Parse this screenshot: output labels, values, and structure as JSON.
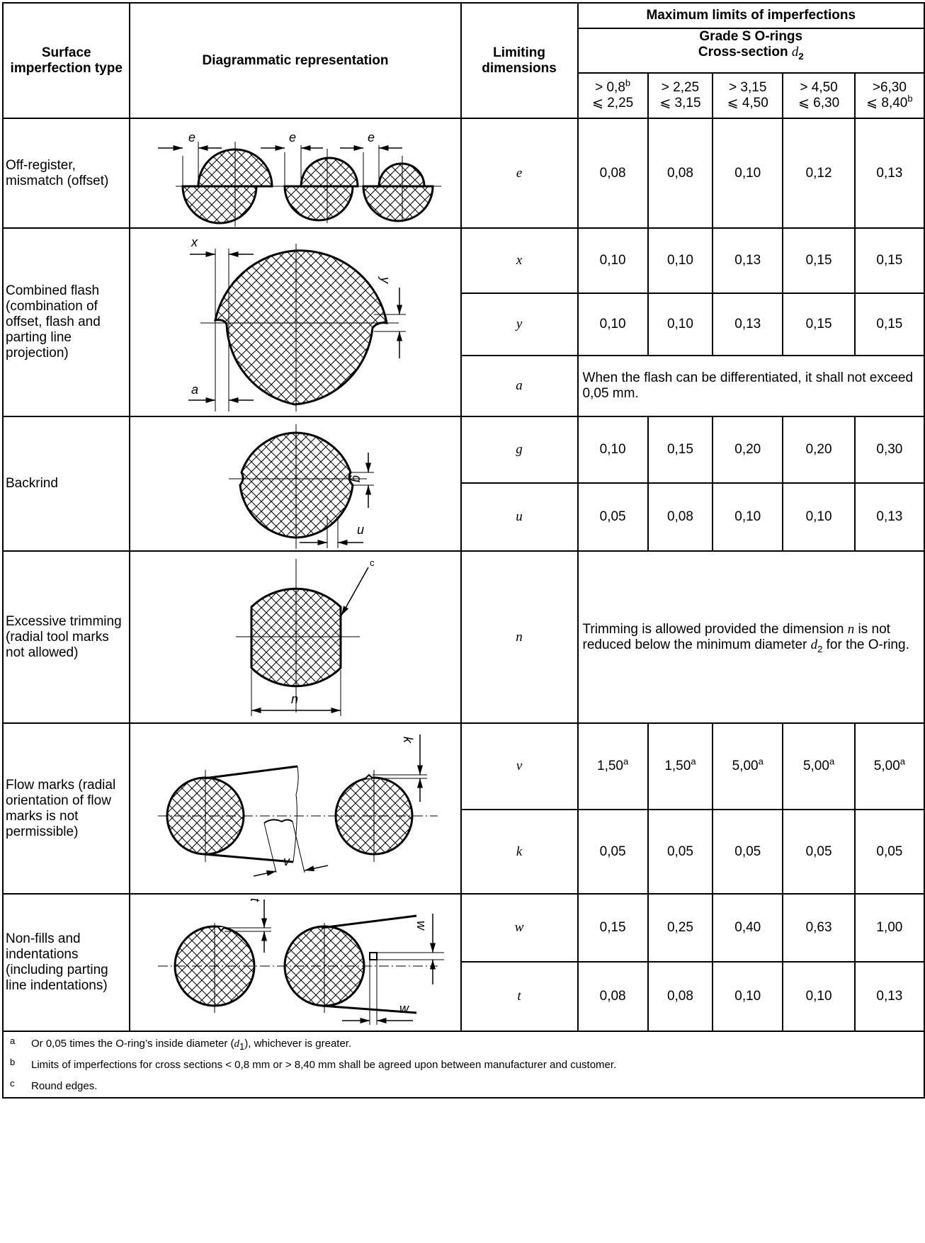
{
  "header": {
    "col_type": "Surface imperfection type",
    "col_diagram": "Diagrammatic representation",
    "col_dimension": "Limiting dimensions",
    "max_limits": "Maximum limits of imperfections",
    "grade": "Grade S O-rings",
    "cross_section_prefix": "Cross-section ",
    "cross_section_symbol": "d",
    "cross_section_sub": "2",
    "ranges": [
      {
        "l1": "> 0,8",
        "l1sup": "b",
        "l2": "⩽ 2,25",
        "l2sup": ""
      },
      {
        "l1": "> 2,25",
        "l1sup": "",
        "l2": "⩽ 3,15",
        "l2sup": ""
      },
      {
        "l1": "> 3,15",
        "l1sup": "",
        "l2": "⩽ 4,50",
        "l2sup": ""
      },
      {
        "l1": "> 4,50",
        "l1sup": "",
        "l2": "⩽ 6,30",
        "l2sup": ""
      },
      {
        "l1": ">6,30",
        "l1sup": "",
        "l2": "⩽ 8,40",
        "l2sup": "b"
      }
    ]
  },
  "rows": {
    "offset": {
      "type": "Off-register, mismatch (offset)",
      "dim": "e",
      "values": [
        "0,08",
        "0,08",
        "0,10",
        "0,12",
        "0,13"
      ],
      "labels": [
        "e",
        "e",
        "e"
      ]
    },
    "flash": {
      "type": "Combined flash (combination of offset, flash and parting line projection)",
      "x": {
        "dim": "x",
        "values": [
          "0,10",
          "0,10",
          "0,13",
          "0,15",
          "0,15"
        ]
      },
      "y": {
        "dim": "y",
        "values": [
          "0,10",
          "0,10",
          "0,13",
          "0,15",
          "0,15"
        ]
      },
      "a": {
        "dim": "a",
        "note": "When the flash can be differentiated, it shall not exceed 0,05 mm."
      },
      "labels": [
        "x",
        "y",
        "a"
      ]
    },
    "backrind": {
      "type": "Backrind",
      "g": {
        "dim": "g",
        "values": [
          "0,10",
          "0,15",
          "0,20",
          "0,20",
          "0,30"
        ]
      },
      "u": {
        "dim": "u",
        "values": [
          "0,05",
          "0,08",
          "0,10",
          "0,10",
          "0,13"
        ]
      },
      "labels": [
        "g",
        "u"
      ]
    },
    "trimming": {
      "type": "Excessive trimming (radial tool marks not allowed)",
      "dim": "n",
      "note_a": "Trimming is allowed provided the dimension ",
      "note_n": "n",
      "note_b": " is not reduced below the minimum diameter ",
      "note_d": "d",
      "note_sub": "2",
      "note_c": " for the O-ring.",
      "labels": [
        "c",
        "n"
      ]
    },
    "flow": {
      "type": "Flow marks (radial orientation of flow marks is not permissible)",
      "v": {
        "dim": "v",
        "values": [
          "1,50",
          "1,50",
          "5,00",
          "5,00",
          "5,00"
        ],
        "sup": "a"
      },
      "k": {
        "dim": "k",
        "values": [
          "0,05",
          "0,05",
          "0,05",
          "0,05",
          "0,05"
        ]
      },
      "labels": [
        "k",
        "v"
      ]
    },
    "nonfill": {
      "type": "Non-fills and indentations (including parting line indentations)",
      "w": {
        "dim": "w",
        "values": [
          "0,15",
          "0,25",
          "0,40",
          "0,63",
          "1,00"
        ]
      },
      "t": {
        "dim": "t",
        "values": [
          "0,08",
          "0,08",
          "0,10",
          "0,10",
          "0,13"
        ]
      },
      "labels": [
        "t",
        "w",
        "w"
      ]
    }
  },
  "footnotes": [
    {
      "mark": "a",
      "text_a": "Or 0,05 times the O-ring’s inside diameter (",
      "sym": "d",
      "sub": "1",
      "text_b": "), whichever is greater."
    },
    {
      "mark": "b",
      "text": "Limits of imperfections for cross sections < 0,8 mm or > 8,40 mm shall be agreed upon between manufacturer and customer."
    },
    {
      "mark": "c",
      "text": "Round edges."
    }
  ]
}
